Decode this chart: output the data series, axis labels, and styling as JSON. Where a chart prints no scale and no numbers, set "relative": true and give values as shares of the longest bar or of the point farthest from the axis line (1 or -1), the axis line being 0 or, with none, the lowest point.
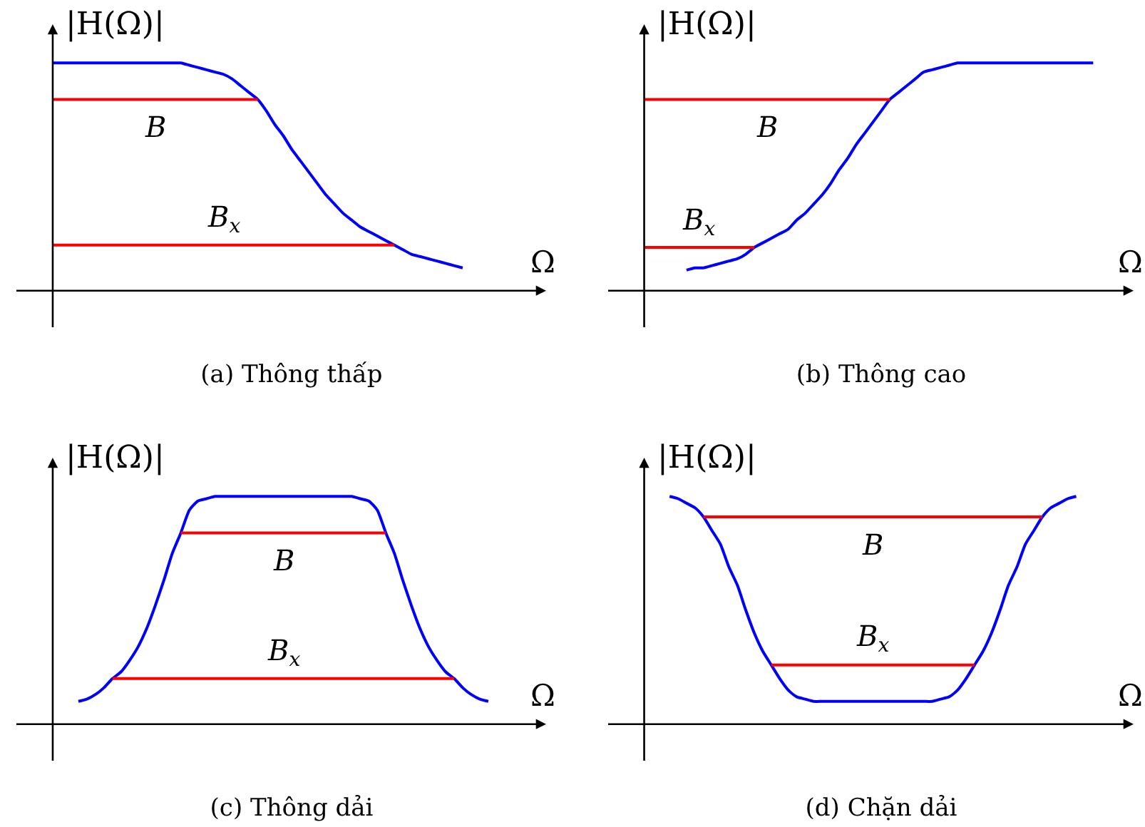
{
  "chart_data": [
    {
      "type": "line",
      "title": "(a) Thông thấp",
      "xlabel": "Ω",
      "ylabel": "|H(Ω)|",
      "relative": true,
      "categories": [
        null,
        null,
        null,
        null,
        null,
        null,
        null,
        null,
        null,
        null,
        null,
        null,
        null,
        null,
        null,
        null,
        null,
        null,
        null,
        null,
        null,
        null,
        null,
        null,
        null,
        null,
        null,
        null,
        null,
        null,
        null,
        null,
        null,
        null,
        null,
        null,
        null,
        null,
        null,
        null,
        null,
        null,
        null,
        null,
        null,
        null,
        null,
        null,
        null,
        null,
        null,
        null,
        null,
        null
      ],
      "series": [
        {
          "color": "#0000ff",
          "values": [
            1,
            1,
            1,
            1,
            1,
            1,
            1,
            1,
            1,
            1,
            1,
            1,
            1,
            1,
            1,
            1,
            0.99,
            0.98,
            0.97,
            0.96,
            0.95,
            0.93,
            0.9,
            0.87,
            0.84,
            0.79,
            0.73,
            0.68,
            0.62,
            0.57,
            0.52,
            0.47,
            0.42,
            0.38,
            0.34,
            0.31,
            0.28,
            0.26,
            0.24,
            0.22,
            0.2,
            0.18,
            0.16,
            0.15,
            0.14,
            0.13,
            0.12,
            0.11,
            0.1,
            null,
            null,
            null,
            null,
            null
          ]
        },
        {
          "name": "B",
          "color": "#ff0000",
          "values": [
            0.84,
            0.84,
            0.84,
            0.84,
            0.84,
            0.84,
            0.84,
            0.84,
            0.84,
            0.84,
            0.84,
            0.84,
            0.84,
            0.84,
            0.84,
            0.84,
            0.84,
            0.84,
            0.84,
            0.84,
            0.84,
            0.84,
            0.84,
            0.84,
            0.84,
            null,
            null,
            null,
            null,
            null,
            null,
            null,
            null,
            null,
            null,
            null,
            null,
            null,
            null,
            null,
            null,
            null,
            null,
            null,
            null,
            null,
            null,
            null,
            null,
            null,
            null,
            null,
            null,
            null
          ]
        },
        {
          "name": "B$_{x}$",
          "color": "#ff0000",
          "values": [
            0.2,
            0.2,
            0.2,
            0.2,
            0.2,
            0.2,
            0.2,
            0.2,
            0.2,
            0.2,
            0.2,
            0.2,
            0.2,
            0.2,
            0.2,
            0.2,
            0.2,
            0.2,
            0.2,
            0.2,
            0.2,
            0.2,
            0.2,
            0.2,
            0.2,
            0.2,
            0.2,
            0.2,
            0.2,
            0.2,
            0.2,
            0.2,
            0.2,
            0.2,
            0.2,
            0.2,
            0.2,
            0.2,
            0.2,
            0.2,
            0.2,
            null,
            null,
            null,
            null,
            null,
            null,
            null,
            null,
            null,
            null,
            null,
            null,
            null
          ]
        }
      ]
    },
    {
      "type": "line",
      "title": "(b) Thông cao",
      "xlabel": "Ω",
      "ylabel": "|H(Ω)|",
      "relative": true,
      "categories": [
        null,
        null,
        null,
        null,
        null,
        null,
        null,
        null,
        null,
        null,
        null,
        null,
        null,
        null,
        null,
        null,
        null,
        null,
        null,
        null,
        null,
        null,
        null,
        null,
        null,
        null,
        null,
        null,
        null,
        null,
        null,
        null,
        null,
        null,
        null,
        null,
        null,
        null,
        null,
        null,
        null,
        null,
        null,
        null,
        null,
        null,
        null,
        null,
        null,
        null,
        null,
        null,
        null,
        null
      ],
      "series": [
        {
          "color": "#0000ff",
          "values": [
            null,
            null,
            null,
            null,
            null,
            0.09,
            0.1,
            0.1,
            0.11,
            0.12,
            0.13,
            0.14,
            0.16,
            0.19,
            0.21,
            0.23,
            0.25,
            0.27,
            0.31,
            0.34,
            0.38,
            0.42,
            0.47,
            0.53,
            0.58,
            0.64,
            0.69,
            0.74,
            0.79,
            0.84,
            0.87,
            0.9,
            0.93,
            0.96,
            0.97,
            0.98,
            0.99,
            1,
            1,
            1,
            1,
            1,
            1,
            1,
            1,
            1,
            1,
            1,
            1,
            1,
            1,
            1,
            1,
            1
          ]
        },
        {
          "name": "B",
          "color": "#ff0000",
          "values": [
            0.84,
            0.84,
            0.84,
            0.84,
            0.84,
            0.84,
            0.84,
            0.84,
            0.84,
            0.84,
            0.84,
            0.84,
            0.84,
            0.84,
            0.84,
            0.84,
            0.84,
            0.84,
            0.84,
            0.84,
            0.84,
            0.84,
            0.84,
            0.84,
            0.84,
            0.84,
            0.84,
            0.84,
            0.84,
            0.84,
            null,
            null,
            null,
            null,
            null,
            null,
            null,
            null,
            null,
            null,
            null,
            null,
            null,
            null,
            null,
            null,
            null,
            null,
            null,
            null,
            null,
            null,
            null,
            null
          ]
        },
        {
          "name": "B$_{x}$",
          "color": "#ff0000",
          "values": [
            0.19,
            0.19,
            0.19,
            0.19,
            0.19,
            0.19,
            0.19,
            0.19,
            0.19,
            0.19,
            0.19,
            0.19,
            0.19,
            0.19,
            null,
            null,
            null,
            null,
            null,
            null,
            null,
            null,
            null,
            null,
            null,
            null,
            null,
            null,
            null,
            null,
            null,
            null,
            null,
            null,
            null,
            null,
            null,
            null,
            null,
            null,
            null,
            null,
            null,
            null,
            null,
            null,
            null,
            null,
            null,
            null,
            null,
            null,
            null,
            null
          ]
        }
      ]
    },
    {
      "type": "line",
      "title": "(c) Thông dải",
      "xlabel": "Ω",
      "ylabel": "|H(Ω)|",
      "relative": true,
      "categories": [
        null,
        null,
        null,
        null,
        null,
        null,
        null,
        null,
        null,
        null,
        null,
        null,
        null,
        null,
        null,
        null,
        null,
        null,
        null,
        null,
        null,
        null,
        null,
        null,
        null,
        null,
        null,
        null,
        null,
        null,
        null,
        null,
        null,
        null,
        null,
        null,
        null,
        null,
        null,
        null,
        null,
        null,
        null,
        null,
        null,
        null,
        null,
        null,
        null,
        null,
        null,
        null,
        null,
        null
      ],
      "series": [
        {
          "color": "#0000ff",
          "values": [
            null,
            null,
            null,
            0.1,
            0.11,
            0.13,
            0.16,
            0.2,
            0.23,
            0.28,
            0.34,
            0.42,
            0.52,
            0.63,
            0.75,
            0.84,
            0.94,
            0.98,
            0.99,
            1,
            1,
            1,
            1,
            1,
            1,
            1,
            1,
            1,
            1,
            1,
            1,
            1,
            1,
            1,
            1,
            1,
            0.99,
            0.98,
            0.94,
            0.84,
            0.75,
            0.63,
            0.52,
            0.42,
            0.34,
            0.28,
            0.23,
            0.2,
            0.16,
            0.13,
            0.11,
            0.1,
            null,
            null
          ]
        },
        {
          "name": "B",
          "color": "#ff0000",
          "values": [
            null,
            null,
            null,
            null,
            null,
            null,
            null,
            null,
            null,
            null,
            null,
            null,
            null,
            null,
            null,
            0.84,
            0.84,
            0.84,
            0.84,
            0.84,
            0.84,
            0.84,
            0.84,
            0.84,
            0.84,
            0.84,
            0.84,
            0.84,
            0.84,
            0.84,
            0.84,
            0.84,
            0.84,
            0.84,
            0.84,
            0.84,
            0.84,
            0.84,
            0.84,
            0.84,
            null,
            null,
            null,
            null,
            null,
            null,
            null,
            null,
            null,
            null,
            null,
            null,
            null,
            null
          ]
        },
        {
          "name": "B$_{x}$",
          "color": "#ff0000",
          "values": [
            null,
            null,
            null,
            null,
            null,
            null,
            null,
            0.2,
            0.2,
            0.2,
            0.2,
            0.2,
            0.2,
            0.2,
            0.2,
            0.2,
            0.2,
            0.2,
            0.2,
            0.2,
            0.2,
            0.2,
            0.2,
            0.2,
            0.2,
            0.2,
            0.2,
            0.2,
            0.2,
            0.2,
            0.2,
            0.2,
            0.2,
            0.2,
            0.2,
            0.2,
            0.2,
            0.2,
            0.2,
            0.2,
            0.2,
            0.2,
            0.2,
            0.2,
            0.2,
            0.2,
            0.2,
            0.2,
            null,
            null,
            null,
            null,
            null,
            null
          ]
        }
      ]
    },
    {
      "type": "line",
      "title": "(d) Chặn dải",
      "xlabel": "Ω",
      "ylabel": "|H(Ω)|",
      "relative": true,
      "categories": [
        null,
        null,
        null,
        null,
        null,
        null,
        null,
        null,
        null,
        null,
        null,
        null,
        null,
        null,
        null,
        null,
        null,
        null,
        null,
        null,
        null,
        null,
        null,
        null,
        null,
        null,
        null,
        null,
        null,
        null,
        null,
        null,
        null,
        null,
        null,
        null,
        null,
        null,
        null,
        null,
        null,
        null,
        null,
        null,
        null,
        null,
        null,
        null,
        null,
        null,
        null,
        null,
        null,
        null
      ],
      "series": [
        {
          "color": "#0000ff",
          "values": [
            null,
            null,
            null,
            1,
            0.99,
            0.97,
            0.95,
            0.91,
            0.85,
            0.79,
            0.69,
            0.61,
            0.5,
            0.4,
            0.32,
            0.26,
            0.2,
            0.15,
            0.12,
            0.11,
            0.1,
            0.1,
            0.1,
            0.1,
            0.1,
            0.1,
            0.1,
            0.1,
            0.1,
            0.1,
            0.1,
            0.1,
            0.1,
            0.1,
            0.1,
            0.11,
            0.12,
            0.15,
            0.2,
            0.26,
            0.32,
            0.4,
            0.5,
            0.61,
            0.69,
            0.79,
            0.85,
            0.91,
            0.95,
            0.97,
            0.99,
            1,
            null,
            null
          ]
        },
        {
          "name": "B",
          "color": "#ff0000",
          "values": [
            null,
            null,
            null,
            null,
            null,
            null,
            null,
            0.91,
            0.91,
            0.91,
            0.91,
            0.91,
            0.91,
            0.91,
            0.91,
            0.91,
            0.91,
            0.91,
            0.91,
            0.91,
            0.91,
            0.91,
            0.91,
            0.91,
            0.91,
            0.91,
            0.91,
            0.91,
            0.91,
            0.91,
            0.91,
            0.91,
            0.91,
            0.91,
            0.91,
            0.91,
            0.91,
            0.91,
            0.91,
            0.91,
            0.91,
            0.91,
            0.91,
            0.91,
            0.91,
            0.91,
            0.91,
            0.91,
            null,
            null,
            null,
            null,
            null,
            null
          ]
        },
        {
          "name": "B$_{x}$",
          "color": "#ff0000",
          "values": [
            null,
            null,
            null,
            null,
            null,
            null,
            null,
            null,
            null,
            null,
            null,
            null,
            null,
            null,
            null,
            0.26,
            0.26,
            0.26,
            0.26,
            0.26,
            0.26,
            0.26,
            0.26,
            0.26,
            0.26,
            0.26,
            0.26,
            0.26,
            0.26,
            0.26,
            0.26,
            0.26,
            0.26,
            0.26,
            0.26,
            0.26,
            0.26,
            0.26,
            0.26,
            0.26,
            null,
            null,
            null,
            null,
            null,
            null,
            null,
            null,
            null,
            null,
            null,
            null,
            null,
            null
          ]
        }
      ]
    }
  ]
}
